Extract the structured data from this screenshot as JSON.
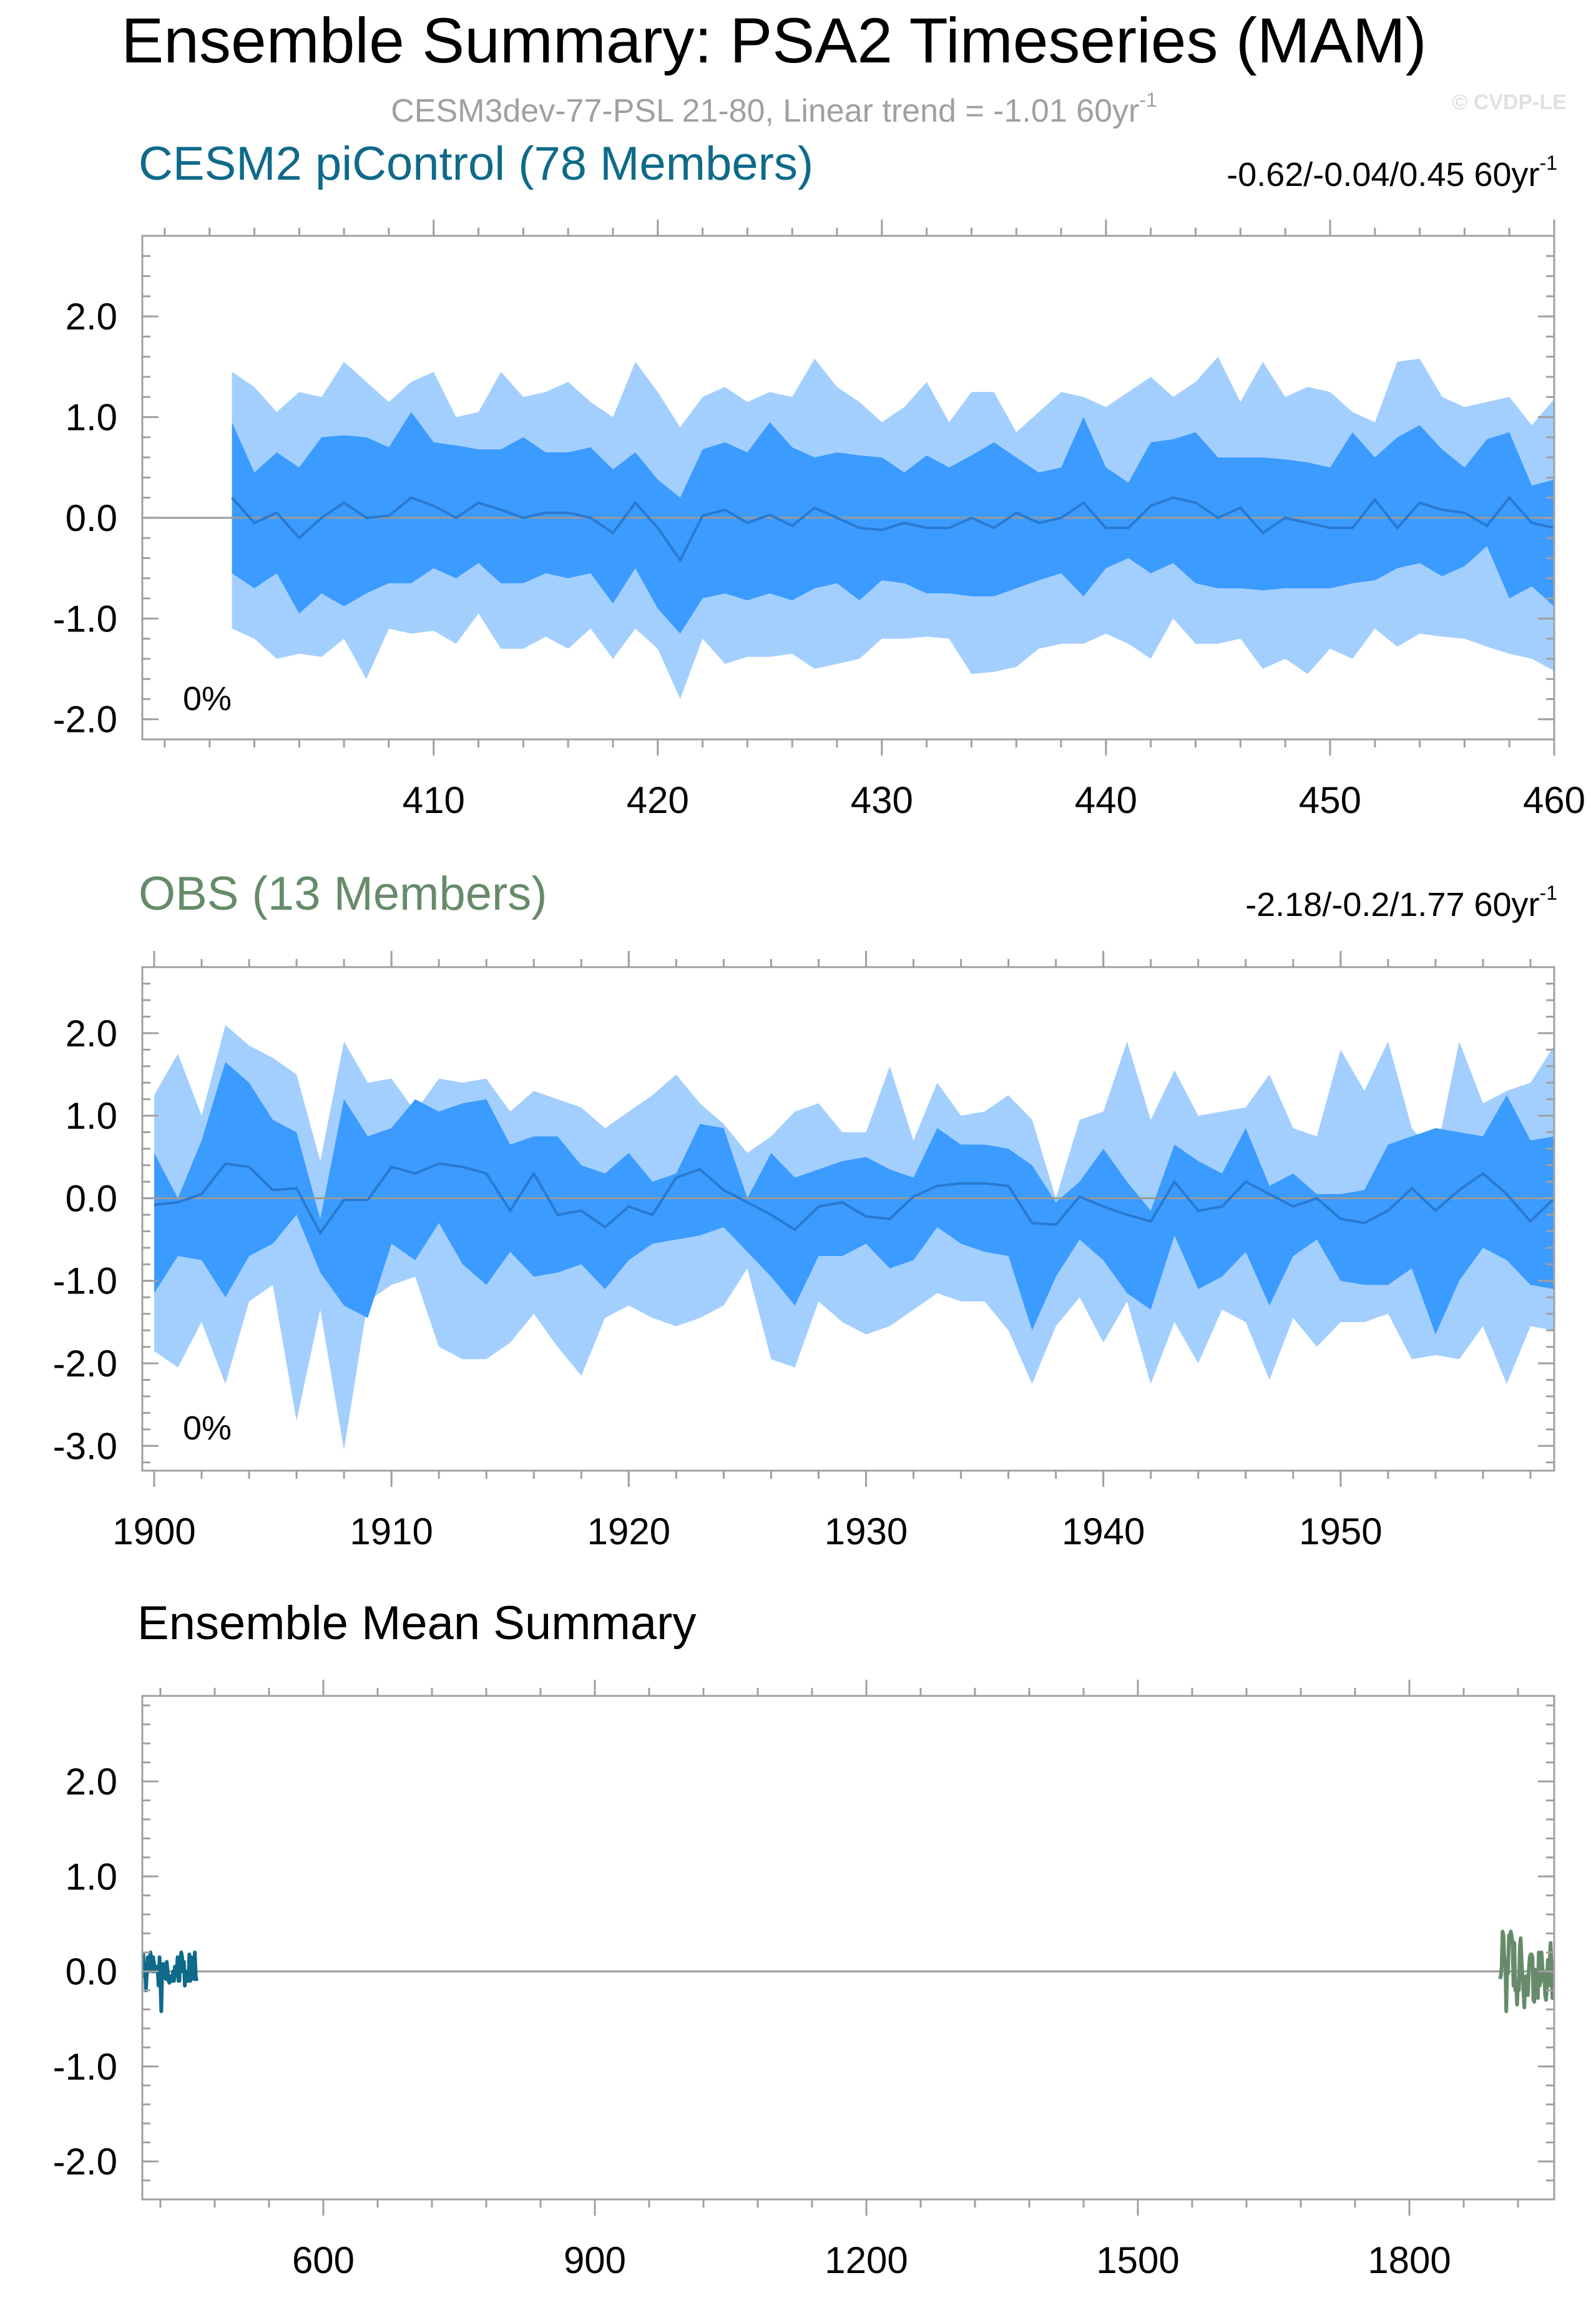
{
  "header": {
    "title": "Ensemble Summary: PSA2 Timeseries (MAM)",
    "subtitle": "CESM3dev-77-PSL 21-80, Linear trend = -1.01 60yr",
    "subtitle_sup": "-1",
    "watermark": "© CVDP-LE"
  },
  "colors": {
    "outer_band": "#a3cfff",
    "inner_band": "#3b9bff",
    "mean_line": "#2979d0",
    "cesm_title": "#0f6a8a",
    "obs_title": "#678b6a",
    "subtitle": "#a0a0a0"
  },
  "chart_data": [
    {
      "id": "cesm",
      "type": "area",
      "title": "CESM2 piControl (78 Members)",
      "trend_text": "-0.62/-0.04/0.45 60yr",
      "trend_sup": "-1",
      "percent_label": "0%",
      "x": [
        401,
        402,
        403,
        404,
        405,
        406,
        407,
        408,
        409,
        410,
        411,
        412,
        413,
        414,
        415,
        416,
        417,
        418,
        419,
        420,
        421,
        422,
        423,
        424,
        425,
        426,
        427,
        428,
        429,
        430,
        431,
        432,
        433,
        434,
        435,
        436,
        437,
        438,
        439,
        440,
        441,
        442,
        443,
        444,
        445,
        446,
        447,
        448,
        449,
        450,
        451,
        452,
        453,
        454,
        455,
        456,
        457,
        458,
        459,
        460
      ],
      "xlim": [
        397,
        460
      ],
      "ylim": [
        -2.2,
        2.8
      ],
      "xticks": [
        410,
        420,
        430,
        440,
        450,
        460
      ],
      "yticks": [
        2.0,
        1.0,
        0.0,
        -1.0,
        -2.0
      ],
      "ytick_labels": [
        "2.0",
        "1.0",
        "0.0",
        "-1.0",
        "-2.0"
      ],
      "xtick_labels": [
        "410",
        "420",
        "430",
        "440",
        "450",
        "460"
      ],
      "outer_upper": [
        1.45,
        1.3,
        1.05,
        1.25,
        1.2,
        1.55,
        1.35,
        1.15,
        1.35,
        1.45,
        1.0,
        1.05,
        1.45,
        1.2,
        1.25,
        1.35,
        1.15,
        1.0,
        1.55,
        1.25,
        0.9,
        1.2,
        1.3,
        1.15,
        1.25,
        1.2,
        1.58,
        1.3,
        1.15,
        0.95,
        1.1,
        1.35,
        0.95,
        1.25,
        1.25,
        0.85,
        1.05,
        1.25,
        1.2,
        1.1,
        1.25,
        1.4,
        1.2,
        1.35,
        1.6,
        1.15,
        1.55,
        1.2,
        1.3,
        1.25,
        1.05,
        0.95,
        1.55,
        1.58,
        1.2,
        1.1,
        1.15,
        1.2,
        0.92,
        1.18
      ],
      "outer_lower": [
        -1.1,
        -1.2,
        -1.4,
        -1.35,
        -1.38,
        -1.2,
        -1.6,
        -1.1,
        -1.15,
        -1.12,
        -1.25,
        -0.95,
        -1.3,
        -1.3,
        -1.18,
        -1.3,
        -1.1,
        -1.4,
        -1.1,
        -1.3,
        -1.8,
        -1.2,
        -1.45,
        -1.38,
        -1.38,
        -1.35,
        -1.5,
        -1.45,
        -1.4,
        -1.2,
        -1.2,
        -1.18,
        -1.2,
        -1.55,
        -1.53,
        -1.48,
        -1.3,
        -1.25,
        -1.25,
        -1.15,
        -1.25,
        -1.4,
        -1.0,
        -1.25,
        -1.25,
        -1.2,
        -1.5,
        -1.4,
        -1.55,
        -1.3,
        -1.4,
        -1.1,
        -1.28,
        -1.15,
        -1.18,
        -1.2,
        -1.28,
        -1.35,
        -1.4,
        -1.52
      ],
      "inner_upper": [
        0.95,
        0.45,
        0.65,
        0.5,
        0.8,
        0.82,
        0.8,
        0.7,
        1.05,
        0.75,
        0.72,
        0.68,
        0.68,
        0.8,
        0.65,
        0.65,
        0.7,
        0.48,
        0.65,
        0.38,
        0.2,
        0.68,
        0.75,
        0.65,
        0.95,
        0.7,
        0.6,
        0.65,
        0.62,
        0.6,
        0.45,
        0.62,
        0.5,
        0.62,
        0.75,
        0.6,
        0.45,
        0.5,
        1.0,
        0.5,
        0.35,
        0.75,
        0.78,
        0.85,
        0.6,
        0.6,
        0.6,
        0.58,
        0.55,
        0.5,
        0.85,
        0.6,
        0.8,
        0.92,
        0.68,
        0.5,
        0.78,
        0.85,
        0.32,
        0.38
      ],
      "inner_lower": [
        -0.55,
        -0.7,
        -0.55,
        -0.95,
        -0.75,
        -0.88,
        -0.75,
        -0.65,
        -0.65,
        -0.5,
        -0.6,
        -0.45,
        -0.65,
        -0.65,
        -0.55,
        -0.6,
        -0.55,
        -0.85,
        -0.5,
        -0.9,
        -1.15,
        -0.8,
        -0.75,
        -0.82,
        -0.75,
        -0.82,
        -0.7,
        -0.65,
        -0.82,
        -0.62,
        -0.65,
        -0.75,
        -0.75,
        -0.78,
        -0.78,
        -0.7,
        -0.62,
        -0.55,
        -0.78,
        -0.5,
        -0.4,
        -0.55,
        -0.45,
        -0.65,
        -0.7,
        -0.7,
        -0.72,
        -0.7,
        -0.7,
        -0.7,
        -0.65,
        -0.62,
        -0.5,
        -0.45,
        -0.58,
        -0.48,
        -0.28,
        -0.8,
        -0.68,
        -0.88
      ],
      "mean": [
        0.2,
        -0.05,
        0.05,
        -0.2,
        0.0,
        0.15,
        0.0,
        0.02,
        0.2,
        0.12,
        0.0,
        0.15,
        0.08,
        0.0,
        0.05,
        0.05,
        0.0,
        -0.15,
        0.15,
        -0.1,
        -0.42,
        0.02,
        0.08,
        -0.05,
        0.03,
        -0.08,
        0.1,
        0.0,
        -0.1,
        -0.12,
        -0.05,
        -0.1,
        -0.1,
        0.0,
        -0.1,
        0.05,
        -0.05,
        0.0,
        0.15,
        -0.1,
        -0.1,
        0.12,
        0.2,
        0.15,
        0.0,
        0.1,
        -0.15,
        0.0,
        -0.05,
        -0.1,
        -0.1,
        0.18,
        -0.1,
        0.15,
        0.08,
        0.05,
        -0.08,
        0.2,
        -0.05,
        -0.1
      ]
    },
    {
      "id": "obs",
      "type": "area",
      "title": "OBS (13 Members)",
      "trend_text": "-2.18/-0.2/1.77 60yr",
      "trend_sup": "-1",
      "percent_label": "0%",
      "x": [
        1900,
        1901,
        1902,
        1903,
        1904,
        1905,
        1906,
        1907,
        1908,
        1909,
        1910,
        1911,
        1912,
        1913,
        1914,
        1915,
        1916,
        1917,
        1918,
        1919,
        1920,
        1921,
        1922,
        1923,
        1924,
        1925,
        1926,
        1927,
        1928,
        1929,
        1930,
        1931,
        1932,
        1933,
        1934,
        1935,
        1936,
        1937,
        1938,
        1939,
        1940,
        1941,
        1942,
        1943,
        1944,
        1945,
        1946,
        1947,
        1948,
        1949,
        1950,
        1951,
        1952,
        1953,
        1954,
        1955,
        1956,
        1957,
        1958,
        1959
      ],
      "xlim": [
        1899.5,
        1959
      ],
      "ylim": [
        -3.3,
        2.8
      ],
      "xticks": [
        1900,
        1910,
        1920,
        1930,
        1940,
        1950
      ],
      "yticks": [
        2.0,
        1.0,
        0.0,
        -1.0,
        -2.0,
        -3.0
      ],
      "ytick_labels": [
        "2.0",
        "1.0",
        "0.0",
        "-1.0",
        "-2.0",
        "-3.0"
      ],
      "xtick_labels": [
        "1900",
        "1910",
        "1920",
        "1930",
        "1940",
        "1950"
      ],
      "outer_upper": [
        1.25,
        1.75,
        1.0,
        2.1,
        1.85,
        1.7,
        1.5,
        0.45,
        1.9,
        1.4,
        1.45,
        1.05,
        1.45,
        1.4,
        1.45,
        1.05,
        1.3,
        1.2,
        1.1,
        0.85,
        1.05,
        1.25,
        1.5,
        1.15,
        0.9,
        0.55,
        0.75,
        1.05,
        1.15,
        0.8,
        0.8,
        1.6,
        0.7,
        1.4,
        1.0,
        1.05,
        1.25,
        0.95,
        0.0,
        0.95,
        1.05,
        1.9,
        0.95,
        1.55,
        1.0,
        1.05,
        1.1,
        1.5,
        0.85,
        0.75,
        1.8,
        1.3,
        1.9,
        0.85,
        0.5,
        1.9,
        1.15,
        1.3,
        1.4,
        1.85
      ],
      "outer_lower": [
        -1.85,
        -2.05,
        -1.5,
        -2.25,
        -1.25,
        -1.05,
        -2.7,
        -1.35,
        -3.05,
        -1.25,
        -1.05,
        -0.95,
        -1.8,
        -1.95,
        -1.95,
        -1.75,
        -1.4,
        -1.8,
        -2.15,
        -1.45,
        -1.3,
        -1.45,
        -1.55,
        -1.45,
        -1.3,
        -0.85,
        -1.95,
        -2.05,
        -1.25,
        -1.5,
        -1.65,
        -1.55,
        -1.35,
        -1.15,
        -1.25,
        -1.25,
        -1.6,
        -2.25,
        -1.55,
        -1.2,
        -1.75,
        -1.25,
        -2.25,
        -1.5,
        -2.0,
        -1.35,
        -1.5,
        -2.2,
        -1.45,
        -1.8,
        -1.5,
        -1.5,
        -1.4,
        -1.95,
        -1.9,
        -1.95,
        -1.55,
        -2.25,
        -1.55,
        -1.6
      ],
      "inner_upper": [
        0.55,
        0.0,
        0.7,
        1.65,
        1.4,
        0.95,
        0.8,
        -0.25,
        1.2,
        0.75,
        0.85,
        1.2,
        1.05,
        1.15,
        1.2,
        0.65,
        0.75,
        0.75,
        0.4,
        0.3,
        0.55,
        0.2,
        0.3,
        0.9,
        0.85,
        0.0,
        0.55,
        0.25,
        0.35,
        0.45,
        0.5,
        0.35,
        0.25,
        0.85,
        0.65,
        0.65,
        0.6,
        0.4,
        -0.05,
        0.2,
        0.6,
        0.2,
        -0.15,
        0.65,
        0.45,
        0.3,
        0.85,
        0.15,
        0.3,
        0.05,
        0.05,
        0.1,
        0.65,
        0.75,
        0.85,
        0.8,
        0.75,
        1.25,
        0.7,
        0.75
      ],
      "inner_lower": [
        -1.15,
        -0.7,
        -0.75,
        -1.2,
        -0.7,
        -0.55,
        -0.2,
        -0.9,
        -1.3,
        -1.45,
        -0.55,
        -0.75,
        -0.3,
        -0.8,
        -1.05,
        -0.65,
        -0.95,
        -0.9,
        -0.8,
        -1.1,
        -0.75,
        -0.55,
        -0.5,
        -0.45,
        -0.35,
        -0.65,
        -0.95,
        -1.3,
        -0.7,
        -0.7,
        -0.55,
        -0.85,
        -0.75,
        -0.35,
        -0.55,
        -0.65,
        -0.7,
        -1.6,
        -0.95,
        -0.5,
        -0.75,
        -1.15,
        -1.35,
        -0.45,
        -1.1,
        -0.95,
        -0.65,
        -1.3,
        -0.7,
        -0.5,
        -1.0,
        -1.05,
        -1.05,
        -0.85,
        -1.65,
        -1.0,
        -0.6,
        -0.75,
        -1.05,
        -1.1
      ],
      "mean": [
        -0.08,
        -0.05,
        0.05,
        0.42,
        0.38,
        0.1,
        0.12,
        -0.42,
        -0.02,
        -0.02,
        0.38,
        0.3,
        0.42,
        0.38,
        0.3,
        -0.15,
        0.3,
        -0.2,
        -0.15,
        -0.35,
        -0.1,
        -0.2,
        0.25,
        0.35,
        0.1,
        -0.05,
        -0.2,
        -0.38,
        -0.1,
        -0.05,
        -0.22,
        -0.25,
        0.02,
        0.15,
        0.18,
        0.18,
        0.15,
        -0.3,
        -0.32,
        0.02,
        -0.1,
        -0.2,
        -0.28,
        0.2,
        -0.15,
        -0.1,
        0.2,
        0.05,
        -0.1,
        0.0,
        -0.25,
        -0.3,
        -0.15,
        0.12,
        -0.15,
        0.1,
        0.3,
        0.05,
        -0.28,
        0.0
      ]
    },
    {
      "id": "summary",
      "type": "line",
      "title": "Ensemble Mean Summary",
      "xlim": [
        400,
        1960
      ],
      "ylim": [
        -2.4,
        2.9
      ],
      "xticks": [
        600,
        900,
        1200,
        1500,
        1800
      ],
      "xtick_labels": [
        "600",
        "900",
        "1200",
        "1500",
        "1800"
      ],
      "yticks": [
        2.0,
        1.0,
        0.0,
        -1.0,
        -2.0
      ],
      "ytick_labels": [
        "2.0",
        "1.0",
        "0.0",
        "-1.0",
        "-2.0"
      ],
      "series": [
        {
          "name": "CESM2 piControl",
          "color": "#0f6a8a",
          "x_start": 401,
          "x_step": 1,
          "values": [
            0.2,
            -0.05,
            0.05,
            -0.2,
            0.0,
            0.15,
            0.0,
            0.02,
            0.2,
            0.12,
            0.0,
            0.15,
            0.08,
            0.0,
            0.05,
            0.05,
            0.0,
            -0.15,
            0.15,
            -0.1,
            -0.42,
            0.02,
            0.08,
            -0.05,
            0.03,
            -0.08,
            0.1,
            0.0,
            -0.1,
            -0.12,
            -0.05,
            -0.1,
            -0.1,
            0.0,
            -0.1,
            0.05,
            -0.05,
            0.0,
            0.15,
            -0.1,
            -0.1,
            0.12,
            0.2,
            0.15,
            0.0,
            0.1,
            -0.15,
            0.0,
            -0.05,
            -0.1,
            -0.1,
            0.18,
            -0.1,
            0.15,
            0.08,
            0.05,
            -0.08,
            0.2,
            -0.05,
            -0.1
          ]
        },
        {
          "name": "OBS",
          "color": "#678b6a",
          "x_start": 1900,
          "x_step": 1,
          "values": [
            -0.08,
            -0.05,
            0.05,
            0.42,
            0.38,
            0.1,
            0.12,
            -0.42,
            -0.02,
            -0.02,
            0.38,
            0.3,
            0.42,
            0.38,
            0.3,
            -0.15,
            0.3,
            -0.2,
            -0.15,
            -0.35,
            -0.1,
            -0.2,
            0.25,
            0.35,
            0.1,
            -0.05,
            -0.2,
            -0.38,
            -0.1,
            -0.05,
            -0.22,
            -0.25,
            0.02,
            0.15,
            0.18,
            0.18,
            0.15,
            -0.3,
            -0.32,
            0.02,
            -0.1,
            -0.2,
            -0.28,
            0.2,
            -0.15,
            -0.1,
            0.2,
            0.05,
            -0.1,
            0.0,
            -0.25,
            -0.3,
            -0.15,
            0.12,
            -0.15,
            0.1,
            0.3,
            0.05,
            -0.28,
            0.0
          ]
        }
      ]
    }
  ]
}
